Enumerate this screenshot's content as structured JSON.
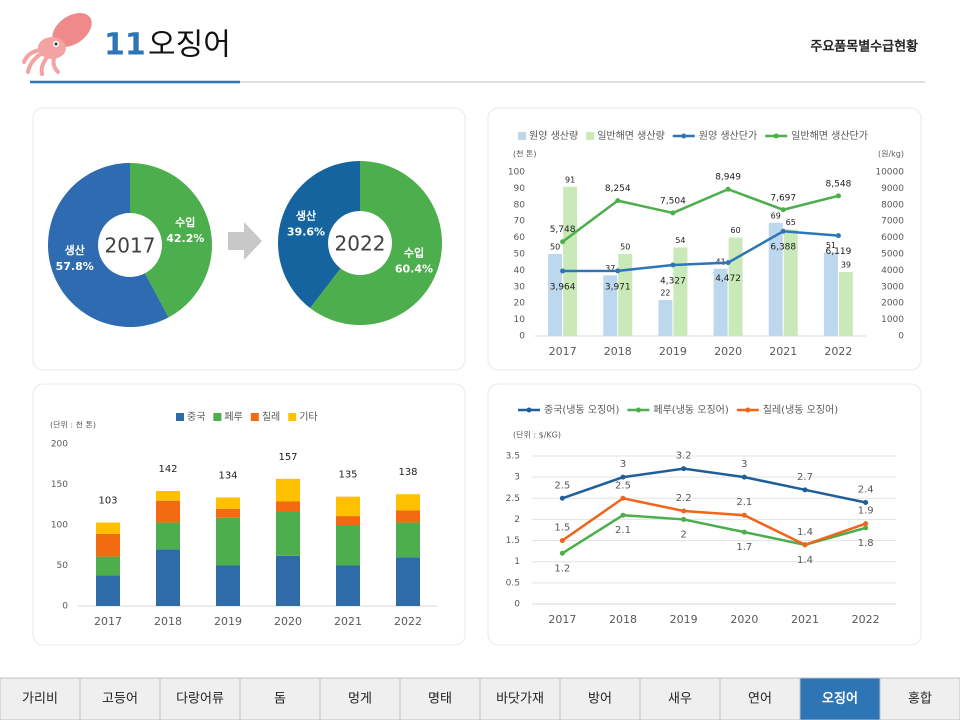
{
  "header": {
    "number": "11",
    "title": "오징어",
    "subtitle": "주요품목별수급현황"
  },
  "chart_data": [
    {
      "type": "pie",
      "title": "2017",
      "categories": [
        "생산",
        "수입"
      ],
      "values": [
        57.8,
        42.2
      ],
      "value_labels": [
        "57.8%",
        "42.2%"
      ],
      "colors": [
        "#2e6bb0",
        "#4cae4c"
      ]
    },
    {
      "type": "pie",
      "title": "2022",
      "categories": [
        "생산",
        "수입"
      ],
      "values": [
        39.6,
        60.4
      ],
      "value_labels": [
        "39.6%",
        "60.4%"
      ],
      "colors": [
        "#15639f",
        "#4cae4c"
      ]
    },
    {
      "type": "combo",
      "y_label": "(천 톤)",
      "y2_label": "(원/kg)",
      "categories": [
        "2017",
        "2018",
        "2019",
        "2020",
        "2021",
        "2022"
      ],
      "series": [
        {
          "name": "원양 생산량",
          "type": "bar",
          "color": "#bdd7ee",
          "values": [
            50,
            37,
            22,
            41,
            69,
            51
          ]
        },
        {
          "name": "일반해면 생산량",
          "type": "bar",
          "color": "#c9eab8",
          "values": [
            91,
            50,
            54,
            60,
            65,
            39
          ]
        },
        {
          "name": "원양 생산단가",
          "type": "line",
          "axis": "y2",
          "color": "#2e75b6",
          "values": [
            3964,
            3971,
            4327,
            4472,
            6388,
            6119
          ],
          "value_labels": [
            "3,964",
            "3,971",
            "4,327",
            "4,472",
            "6,388",
            "6,119"
          ]
        },
        {
          "name": "일반해면 생산단가",
          "type": "line",
          "axis": "y2",
          "color": "#4cae4c",
          "values": [
            5748,
            8254,
            7504,
            8949,
            7697,
            8548
          ],
          "value_labels": [
            "5,748",
            "8,254",
            "7,504",
            "8,949",
            "7,697",
            "8,548"
          ]
        }
      ],
      "ylim": [
        0,
        100
      ],
      "yticks": [
        0,
        10,
        20,
        30,
        40,
        50,
        60,
        70,
        80,
        90,
        100
      ],
      "y2lim": [
        0,
        10000
      ],
      "y2ticks": [
        0,
        1000,
        2000,
        3000,
        4000,
        5000,
        6000,
        7000,
        8000,
        9000,
        10000
      ],
      "grid": false
    },
    {
      "type": "stacked_bar",
      "y_label": "(단위 : 천 톤)",
      "categories": [
        "2017",
        "2018",
        "2019",
        "2020",
        "2021",
        "2022"
      ],
      "series": [
        {
          "name": "중국",
          "color": "#2e6ba8",
          "values": [
            38,
            70,
            50,
            62,
            50,
            60
          ]
        },
        {
          "name": "페루",
          "color": "#4cae4c",
          "values": [
            23,
            33,
            59,
            54,
            50,
            43
          ]
        },
        {
          "name": "칠레",
          "color": "#f26b10",
          "values": [
            28,
            27,
            11,
            13,
            11,
            15
          ]
        },
        {
          "name": "기타",
          "color": "#ffc000",
          "values": [
            14,
            12,
            14,
            28,
            24,
            20
          ]
        }
      ],
      "totals": [
        103,
        142,
        134,
        157,
        135,
        138
      ],
      "ylim": [
        0,
        200
      ],
      "yticks": [
        0,
        50,
        100,
        150,
        200
      ],
      "grid": false
    },
    {
      "type": "line",
      "y_label": "(단위 : $/KG)",
      "categories": [
        "2017",
        "2018",
        "2019",
        "2020",
        "2021",
        "2022"
      ],
      "series": [
        {
          "name": "중국(냉동 오징어)",
          "color": "#1f5f99",
          "values": [
            2.5,
            3,
            3.2,
            3,
            2.7,
            2.4
          ]
        },
        {
          "name": "페루(냉동 오징어)",
          "color": "#4cae4c",
          "values": [
            1.2,
            2.1,
            2,
            1.7,
            1.4,
            1.8
          ]
        },
        {
          "name": "칠레(냉동 오징어)",
          "color": "#f0651c",
          "values": [
            1.5,
            2.5,
            2.2,
            2.1,
            1.4,
            1.9
          ]
        }
      ],
      "ylim": [
        0,
        3.5
      ],
      "yticks": [
        0,
        0.5,
        1,
        1.5,
        2,
        2.5,
        3,
        3.5
      ],
      "grid": true
    }
  ],
  "nav": {
    "items": [
      "가리비",
      "고등어",
      "다랑어류",
      "돔",
      "멍게",
      "명태",
      "바닷가재",
      "방어",
      "새우",
      "연어",
      "오징어",
      "홍합"
    ],
    "active": 10
  }
}
